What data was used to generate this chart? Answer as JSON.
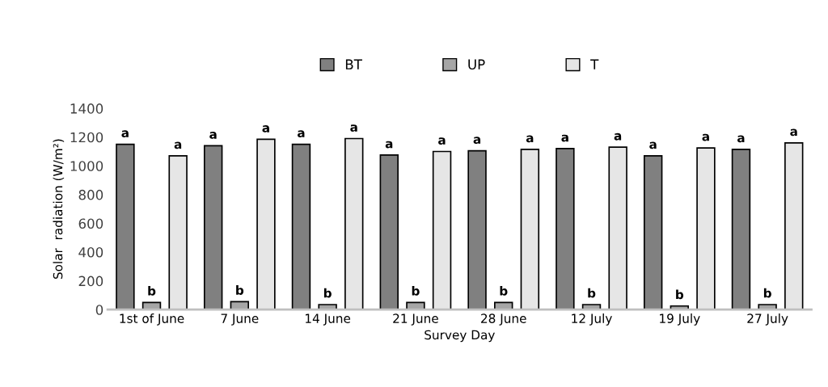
{
  "chart_data": {
    "type": "bar",
    "xlabel": "Survey Day",
    "ylabel": "Solar  radiation (W/m²)",
    "categories": [
      "1st of June",
      "7 June",
      "14 June",
      "21 June",
      "28 June",
      "12 July",
      "19 July",
      "27 July"
    ],
    "series": [
      {
        "name": "BT",
        "color": "#808080",
        "values": [
          1150,
          1140,
          1150,
          1075,
          1105,
          1120,
          1070,
          1115
        ],
        "value_labels": [
          "a",
          "a",
          "a",
          "a",
          "a",
          "a",
          "a",
          "a"
        ]
      },
      {
        "name": "UP",
        "color": "#a6a6a6",
        "values": [
          50,
          55,
          35,
          50,
          50,
          35,
          25,
          35
        ],
        "value_labels": [
          "b",
          "b",
          "b",
          "b",
          "b",
          "b",
          "b",
          "b"
        ]
      },
      {
        "name": "T",
        "color": "#e6e6e6",
        "values": [
          1070,
          1185,
          1190,
          1100,
          1115,
          1130,
          1125,
          1160
        ],
        "value_labels": [
          "a",
          "a",
          "a",
          "a",
          "a",
          "a",
          "a",
          "a"
        ]
      }
    ],
    "ylim": [
      0,
      1400
    ],
    "yticks": [
      0,
      200,
      400,
      600,
      800,
      1000,
      1200,
      1400
    ],
    "grid": false,
    "legend": "top"
  }
}
